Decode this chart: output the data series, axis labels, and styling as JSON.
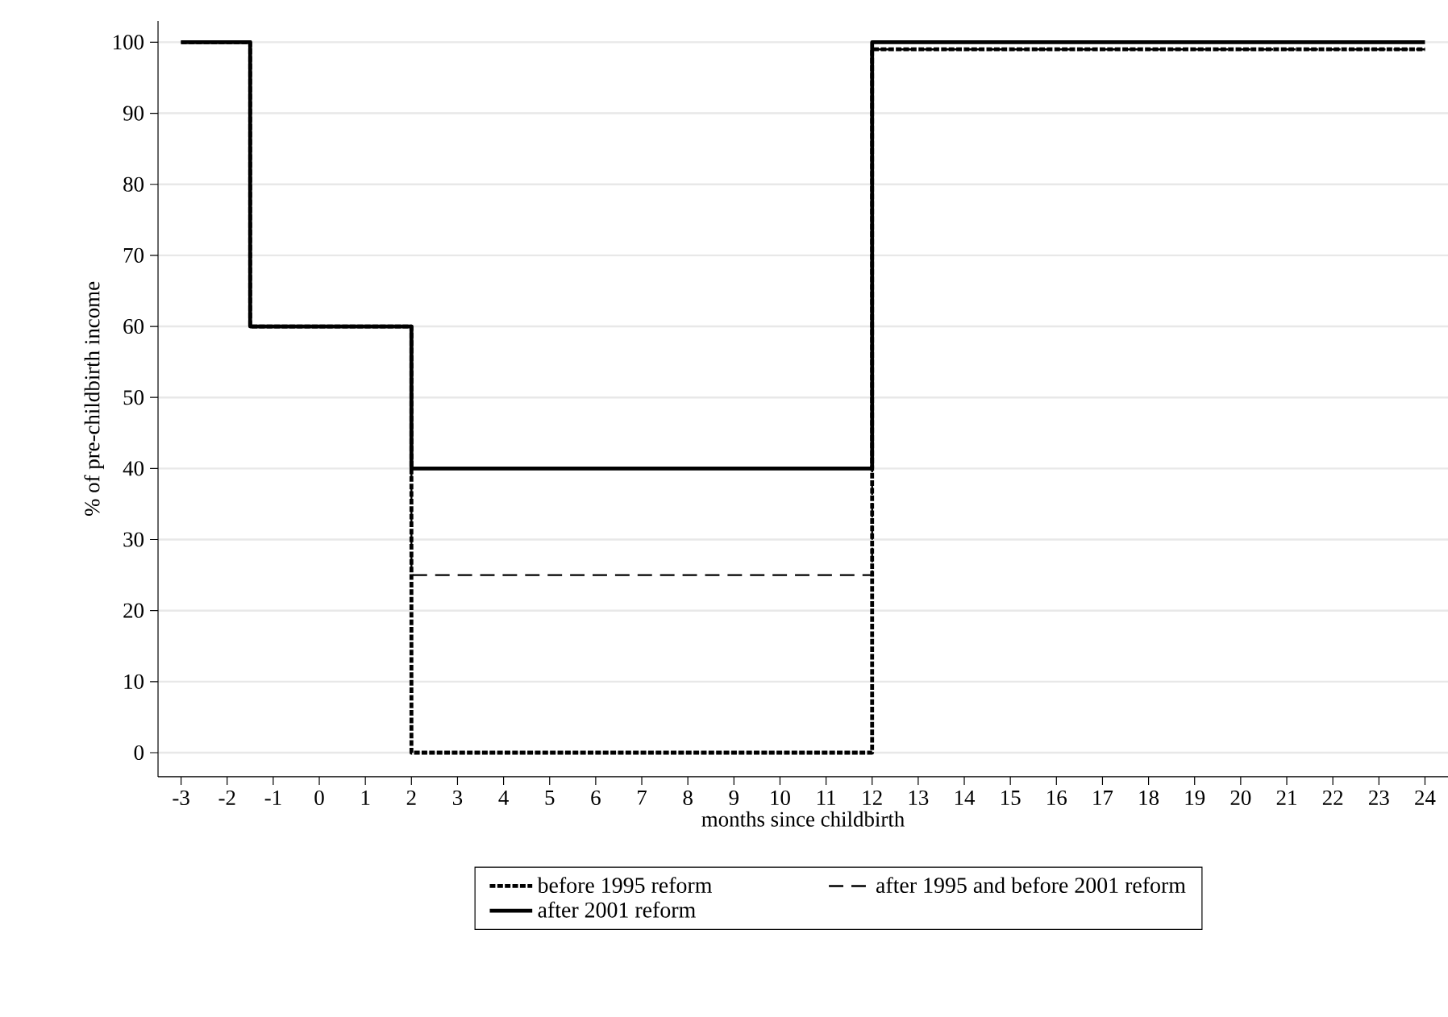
{
  "chart_data": {
    "type": "step",
    "xlabel": "months since childbirth",
    "ylabel": "% of pre-childbirth income",
    "xlim": [
      -3.5,
      24.5
    ],
    "ylim": [
      -3.4,
      103
    ],
    "xticks": [
      -3,
      -2,
      -1,
      0,
      1,
      2,
      3,
      4,
      5,
      6,
      7,
      8,
      9,
      10,
      11,
      12,
      13,
      14,
      15,
      16,
      17,
      18,
      19,
      20,
      21,
      22,
      23,
      24
    ],
    "yticks": [
      0,
      10,
      20,
      30,
      40,
      50,
      60,
      70,
      80,
      90,
      100
    ],
    "grid": "y",
    "legend": "bottom",
    "series": [
      {
        "name": "before 1995 reform",
        "color": "#000000",
        "line_style": "dotted",
        "x": [
          -3,
          -1.5,
          2,
          12,
          24
        ],
        "values": [
          100,
          60,
          0,
          99,
          99
        ]
      },
      {
        "name": "after 1995 and before 2001 reform",
        "color": "#000000",
        "line_style": "dashed",
        "x": [
          -3,
          -1.5,
          2,
          12,
          24
        ],
        "values": [
          100,
          60,
          25,
          99,
          99
        ]
      },
      {
        "name": "after 2001 reform",
        "color": "#000000",
        "line_style": "solid",
        "x": [
          -3,
          -1.5,
          2,
          12,
          24
        ],
        "values": [
          100,
          60,
          40,
          100,
          100
        ]
      }
    ]
  }
}
